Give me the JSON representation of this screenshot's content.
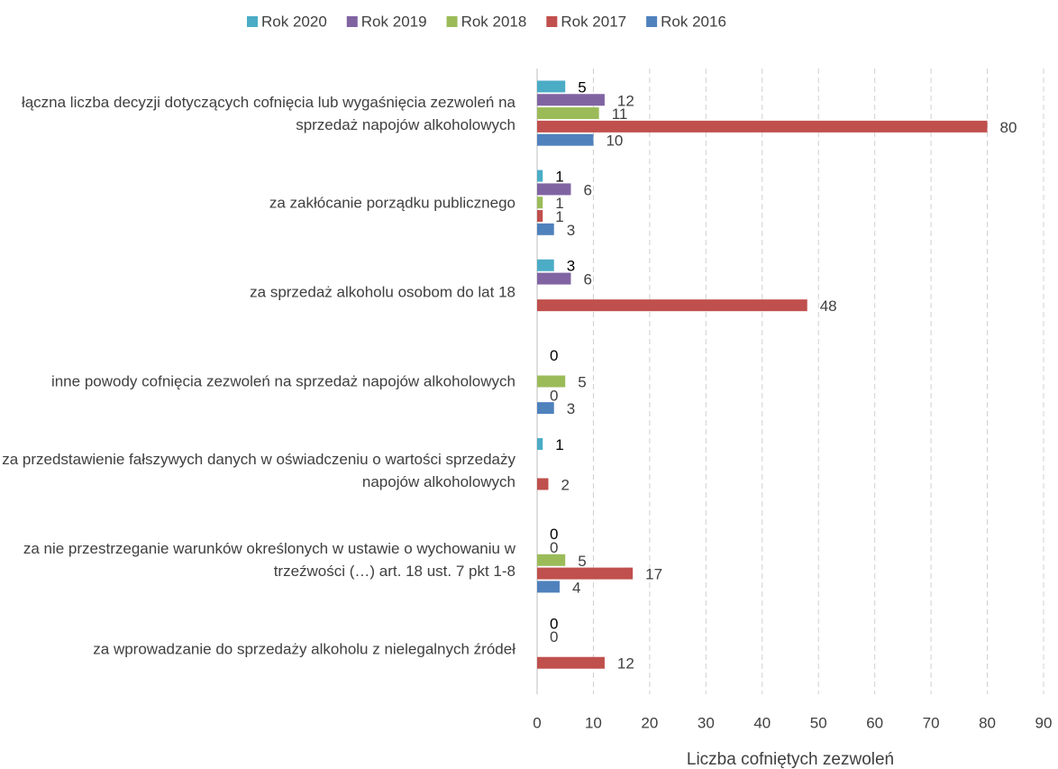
{
  "chart_data": {
    "type": "bar",
    "orientation": "horizontal",
    "x_label": "Liczba cofniętych zezwoleń",
    "categories": [
      "łączna liczba decyzji dotyczących cofnięcia lub wygaśnięcia zezwoleń na sprzedaż napojów alkoholowych",
      "za zakłócanie porządku publicznego",
      "za sprzedaż alkoholu osobom do lat 18",
      "inne powody cofnięcia zezwoleń na sprzedaż napojów alkoholowych",
      "za przedstawienie fałszywych danych w oświadczeniu o wartości sprzedaży napojów alkoholowych",
      "za nie przestrzeganie warunków określonych w ustawie o wychowaniu w trzeźwości (…) art. 18 ust. 7 pkt 1-8",
      "za wprowadzanie do sprzedaży alkoholu z nielegalnych źródeł"
    ],
    "series": [
      {
        "name": "Rok 2020",
        "color": "#4bacc6",
        "label_color": "#000000",
        "values": [
          5,
          1,
          3,
          0,
          1,
          0,
          0
        ]
      },
      {
        "name": "Rok 2019",
        "color": "#8064a2",
        "label_color": "#404040",
        "values": [
          12,
          6,
          6,
          null,
          null,
          0,
          0
        ]
      },
      {
        "name": "Rok 2018",
        "color": "#9bbb59",
        "label_color": "#404040",
        "values": [
          11,
          1,
          null,
          5,
          null,
          5,
          null
        ]
      },
      {
        "name": "Rok 2017",
        "color": "#c0504d",
        "label_color": "#404040",
        "values": [
          80,
          1,
          48,
          0,
          2,
          17,
          12
        ]
      },
      {
        "name": "Rok 2016",
        "color": "#4f81bd",
        "label_color": "#404040",
        "values": [
          10,
          3,
          null,
          3,
          null,
          4,
          null
        ]
      }
    ],
    "xlim": [
      0,
      90
    ],
    "xticks": [
      0,
      10,
      20,
      30,
      40,
      50,
      60,
      70,
      80,
      90
    ],
    "grid": true,
    "legend": "top"
  }
}
